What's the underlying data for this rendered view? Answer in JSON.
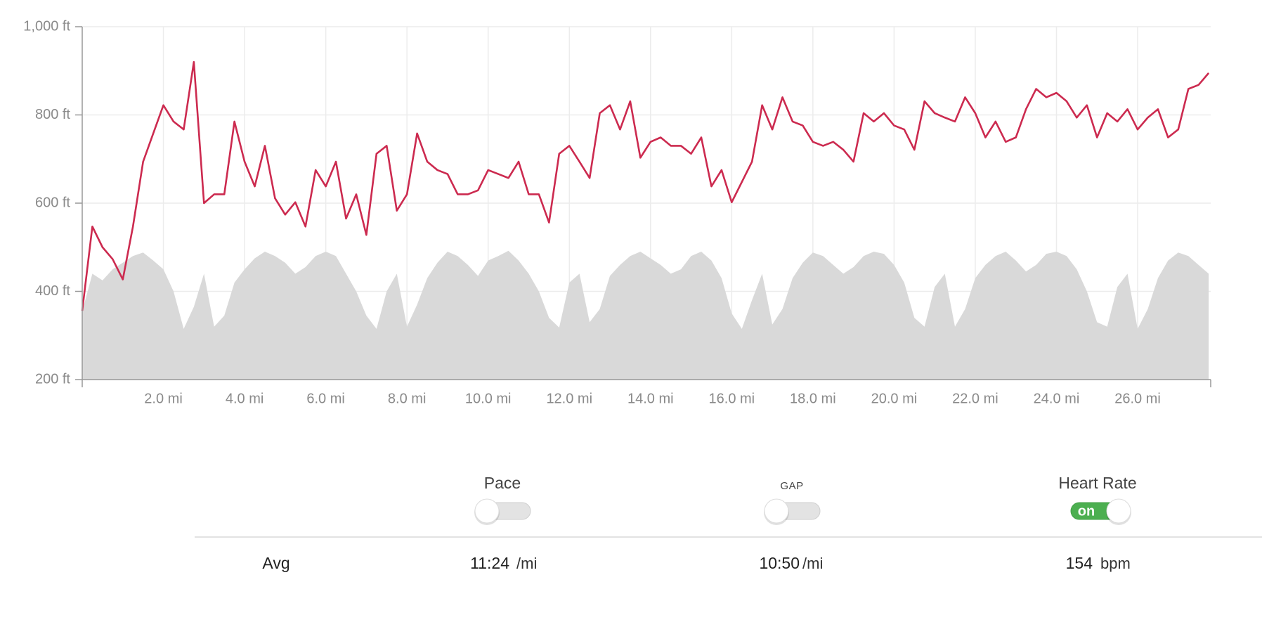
{
  "chart_data": {
    "type": "line",
    "x": [
      0,
      0.25,
      0.5,
      0.75,
      1,
      1.25,
      1.5,
      1.75,
      2,
      2.25,
      2.5,
      2.75,
      3,
      3.25,
      3.5,
      3.75,
      4,
      4.25,
      4.5,
      4.75,
      5,
      5.25,
      5.5,
      5.75,
      6,
      6.25,
      6.5,
      6.75,
      7,
      7.25,
      7.5,
      7.75,
      8,
      8.25,
      8.5,
      8.75,
      9,
      9.25,
      9.5,
      9.75,
      10,
      10.25,
      10.5,
      10.75,
      11,
      11.25,
      11.5,
      11.75,
      12,
      12.25,
      12.5,
      12.75,
      13,
      13.25,
      13.5,
      13.75,
      14,
      14.25,
      14.5,
      14.75,
      15,
      15.25,
      15.5,
      15.75,
      16,
      16.25,
      16.5,
      16.75,
      17,
      17.25,
      17.5,
      17.75,
      18,
      18.25,
      18.5,
      18.75,
      19,
      19.25,
      19.5,
      19.75,
      20,
      20.25,
      20.5,
      20.75,
      21,
      21.25,
      21.5,
      21.75,
      22,
      22.25,
      22.5,
      22.75,
      23,
      23.25,
      23.5,
      23.75,
      24,
      24.25,
      24.5,
      24.75,
      25,
      25.25,
      25.5,
      25.75,
      26,
      26.25,
      26.5,
      26.75,
      27,
      27.25,
      27.5,
      27.75
    ],
    "series": [
      {
        "style": "area",
        "color": "#d9d9d9",
        "values": [
          354,
          440,
          425,
          450,
          465,
          480,
          488,
          470,
          450,
          400,
          315,
          365,
          440,
          320,
          345,
          420,
          450,
          475,
          490,
          480,
          465,
          440,
          455,
          480,
          490,
          480,
          440,
          400,
          345,
          315,
          400,
          440,
          320,
          370,
          430,
          465,
          490,
          480,
          460,
          435,
          470,
          480,
          492,
          470,
          440,
          400,
          340,
          318,
          420,
          440,
          330,
          360,
          435,
          460,
          480,
          490,
          475,
          460,
          440,
          450,
          480,
          490,
          470,
          430,
          350,
          315,
          380,
          440,
          325,
          360,
          430,
          465,
          488,
          480,
          460,
          440,
          455,
          480,
          490,
          485,
          460,
          420,
          340,
          320,
          410,
          440,
          320,
          360,
          430,
          460,
          480,
          490,
          470,
          445,
          460,
          485,
          490,
          480,
          450,
          400,
          330,
          320,
          410,
          440,
          315,
          360,
          430,
          470,
          488,
          480,
          460,
          440
        ]
      },
      {
        "style": "line",
        "color": "#cc2a4f",
        "values": [
          356,
          547,
          500,
          473,
          427,
          547,
          694,
          758,
          822,
          785,
          767,
          920,
          600,
          620,
          620,
          785,
          694,
          638,
          730,
          611,
          574,
          602,
          547,
          675,
          638,
          694,
          565,
          620,
          528,
          712,
          730,
          583,
          620,
          758,
          694,
          675,
          666,
          620,
          620,
          629,
          675,
          666,
          657,
          694,
          620,
          620,
          556,
          712,
          730,
          694,
          657,
          804,
          822,
          767,
          831,
          703,
          739,
          749,
          730,
          730,
          712,
          749,
          638,
          675,
          602,
          648,
          694,
          822,
          767,
          840,
          785,
          776,
          739,
          730,
          739,
          721,
          694,
          804,
          785,
          804,
          776,
          767,
          721,
          831,
          804,
          794,
          785,
          840,
          804,
          749,
          785,
          739,
          749,
          813,
          859,
          840,
          850,
          831,
          794,
          822,
          749,
          804,
          785,
          813,
          767,
          794,
          813,
          749,
          767,
          859,
          868,
          895
        ]
      }
    ],
    "xlim": [
      0,
      27.8
    ],
    "xticks": [
      {
        "value": 2,
        "label": "2.0 mi"
      },
      {
        "value": 4,
        "label": "4.0 mi"
      },
      {
        "value": 6,
        "label": "6.0 mi"
      },
      {
        "value": 8,
        "label": "8.0 mi"
      },
      {
        "value": 10,
        "label": "10.0 mi"
      },
      {
        "value": 12,
        "label": "12.0 mi"
      },
      {
        "value": 14,
        "label": "14.0 mi"
      },
      {
        "value": 16,
        "label": "16.0 mi"
      },
      {
        "value": 18,
        "label": "18.0 mi"
      },
      {
        "value": 20,
        "label": "20.0 mi"
      },
      {
        "value": 22,
        "label": "22.0 mi"
      },
      {
        "value": 24,
        "label": "24.0 mi"
      },
      {
        "value": 26,
        "label": "26.0 mi"
      }
    ],
    "ylim": [
      200,
      1000
    ],
    "yticks": [
      {
        "value": 200,
        "label": "200 ft"
      },
      {
        "value": 400,
        "label": "400 ft"
      },
      {
        "value": 600,
        "label": "600 ft"
      },
      {
        "value": 800,
        "label": "800 ft"
      },
      {
        "value": 1000,
        "label": "1,000 ft"
      }
    ],
    "grid": true
  },
  "toggles": [
    {
      "label": "Pace",
      "checked": false
    },
    {
      "label": "GAP",
      "checked": false
    },
    {
      "label": "Heart Rate",
      "checked": true,
      "on_text": "on"
    }
  ],
  "stats": {
    "label": "Avg",
    "values": [
      {
        "value": "11:24",
        "unit": "/mi"
      },
      {
        "value": "10:50",
        "unit": "/mi"
      },
      {
        "value": "154",
        "unit": "bpm"
      }
    ]
  }
}
